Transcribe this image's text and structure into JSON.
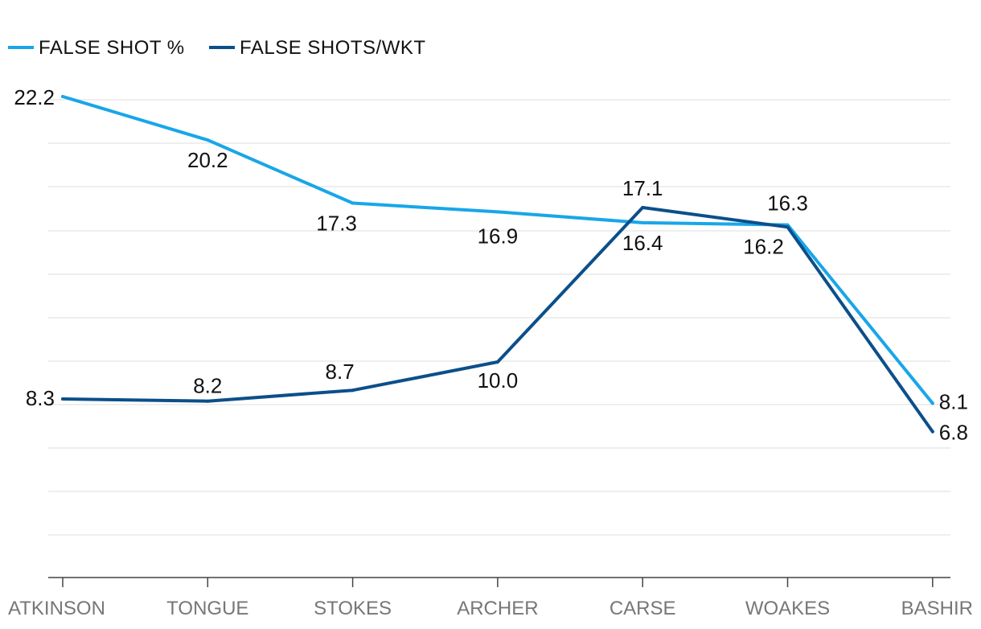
{
  "chart_data": {
    "type": "line",
    "title": "",
    "xlabel": "",
    "ylabel": "",
    "categories": [
      "ATKINSON",
      "TONGUE",
      "STOKES",
      "ARCHER",
      "CARSE",
      "WOAKES",
      "BASHIR"
    ],
    "ylim": [
      0,
      22.2
    ],
    "grid": true,
    "legend": "top-left",
    "series": [
      {
        "name": "FALSE SHOT %",
        "color": "#19a6e8",
        "values": [
          22.2,
          20.2,
          17.3,
          16.9,
          16.4,
          16.3,
          8.1
        ],
        "labels": [
          "22.2",
          "20.2",
          "17.3",
          "16.9",
          "16.4",
          "16.3",
          "8.1"
        ]
      },
      {
        "name": "FALSE SHOTS/WKT",
        "color": "#0b4f8a",
        "values": [
          8.3,
          8.2,
          8.7,
          10.0,
          17.1,
          16.2,
          6.8
        ],
        "labels": [
          "8.3",
          "8.2",
          "8.7",
          "10.0",
          "17.1",
          "16.2",
          "6.8"
        ]
      }
    ]
  }
}
